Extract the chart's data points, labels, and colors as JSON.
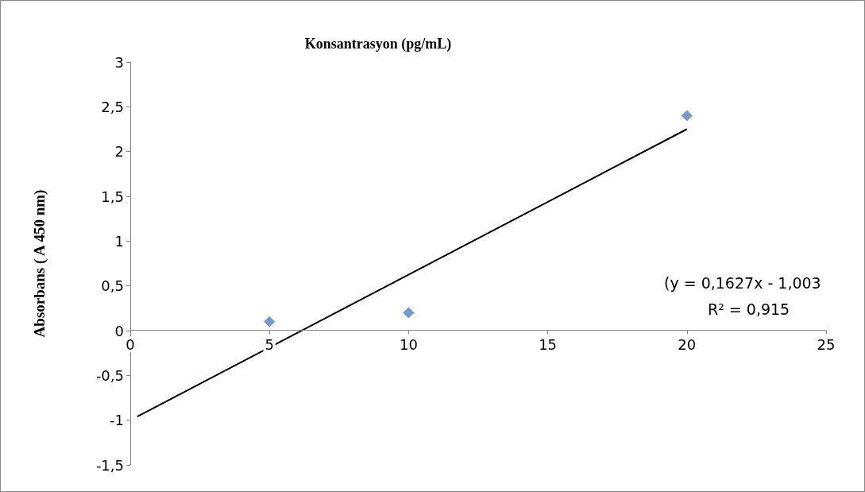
{
  "chart_data": {
    "type": "scatter",
    "title": "Konsantrasyon (pg/mL)",
    "ylabel": "Absorbans ( A 450 nm)",
    "annotations": [
      "(y = 0,1627x - 1,003",
      "R² = 0,915"
    ],
    "series": [
      {
        "type": "scatter",
        "color": "#4f81bd",
        "marker": "diamond",
        "x": [
          5,
          10,
          20
        ],
        "values": [
          0.1,
          0.2,
          2.4
        ]
      },
      {
        "type": "line",
        "color": "#000000",
        "marker": "none",
        "line_style": "solid",
        "x": [
          0.25,
          20
        ],
        "values": [
          -0.96,
          2.25
        ]
      }
    ],
    "xlim": [
      0,
      25
    ],
    "xticks": [
      0,
      5,
      10,
      15,
      20,
      25
    ],
    "ylim": [
      -1.5,
      3
    ],
    "yticks": [
      {
        "value": -1.5,
        "label": "-1,5"
      },
      {
        "value": -1,
        "label": "-1"
      },
      {
        "value": -0.5,
        "label": "-0,5"
      },
      {
        "value": 0,
        "label": "0"
      },
      {
        "value": 0.5,
        "label": "0,5"
      },
      {
        "value": 1,
        "label": "1"
      },
      {
        "value": 1.5,
        "label": "1,5"
      },
      {
        "value": 2,
        "label": "2"
      },
      {
        "value": 2.5,
        "label": "2,5"
      },
      {
        "value": 3,
        "label": "3"
      }
    ],
    "grid": false
  }
}
